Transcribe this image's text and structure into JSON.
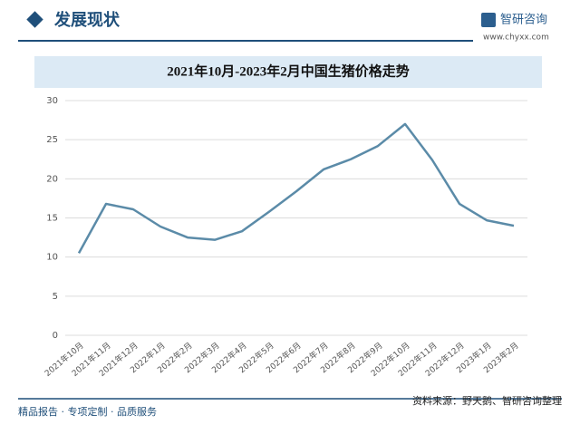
{
  "header": {
    "title": "发展现状",
    "brand": "智研咨询",
    "site": "www.chyxx.com"
  },
  "chart_data": {
    "type": "line",
    "title": "2021年10月-2023年2月中国生猪价格走势",
    "categories": [
      "2021年10月",
      "2021年11月",
      "2021年12月",
      "2022年1月",
      "2022年2月",
      "2022年3月",
      "2022年4月",
      "2022年5月",
      "2022年6月",
      "2022年7月",
      "2022年8月",
      "2022年9月",
      "2022年10月",
      "2022年11月",
      "2022年12月",
      "2023年1月",
      "2023年2月"
    ],
    "values": [
      10.5,
      16.8,
      16.1,
      13.9,
      12.5,
      12.2,
      13.3,
      15.8,
      18.4,
      21.2,
      22.5,
      24.2,
      27.0,
      22.4,
      16.8,
      14.7,
      14.0
    ],
    "color": "#5b8ba8",
    "ylim": [
      0,
      30
    ],
    "yticks": [
      0,
      5,
      10,
      15,
      20,
      25,
      30
    ],
    "grid": true
  },
  "footer": {
    "slogan": "精品报告 · 专项定制 · 品质服务",
    "source": "资料来源：野天鹅、智研咨询整理"
  }
}
